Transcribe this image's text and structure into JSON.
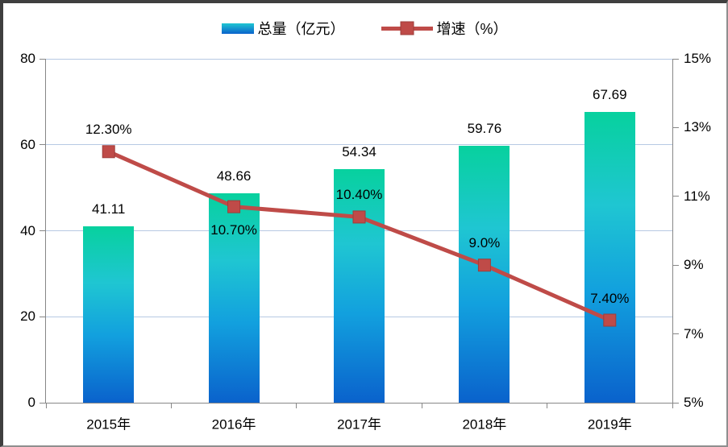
{
  "legend": {
    "position": "top",
    "items": [
      {
        "label": "总量（亿元）",
        "type": "bar"
      },
      {
        "label": "增速（%）",
        "type": "line"
      }
    ]
  },
  "chart_data": {
    "type": "bar+line combo",
    "title": "",
    "categories": [
      "2015年",
      "2016年",
      "2017年",
      "2018年",
      "2019年"
    ],
    "series": [
      {
        "name": "总量（亿元）",
        "type": "bar",
        "axis": "left",
        "values": [
          41.11,
          48.66,
          54.34,
          59.76,
          67.69
        ],
        "labels": [
          "41.11",
          "48.66",
          "54.34",
          "59.76",
          "67.69"
        ]
      },
      {
        "name": "增速（%）",
        "type": "line",
        "axis": "right",
        "values": [
          12.3,
          10.7,
          10.4,
          9.0,
          7.4
        ],
        "labels": [
          "12.30%",
          "10.70%",
          "10.40%",
          "9.0%",
          "7.40%"
        ],
        "label_position": [
          "above",
          "below",
          "above",
          "above",
          "above"
        ]
      }
    ],
    "left_axis": {
      "min": 0,
      "max": 80,
      "tick_values": [
        0,
        20,
        40,
        60,
        80
      ],
      "tick_labels": [
        "0",
        "20",
        "40",
        "60",
        "80"
      ]
    },
    "right_axis": {
      "min": 5,
      "max": 15,
      "tick_values": [
        5,
        7,
        9,
        11,
        13,
        15
      ],
      "tick_labels": [
        "5%",
        "7%",
        "9%",
        "11%",
        "13%",
        "15%"
      ]
    },
    "grid": "horizontal, at left-axis major ticks",
    "colors": {
      "bar_gradient_top": "#07d19e",
      "bar_gradient_mid1": "#1fc6d2",
      "bar_gradient_mid2": "#12a0de",
      "bar_gradient_bottom": "#0a62cc",
      "line": "#bf4b48",
      "marker_border": "#9e3d3a",
      "gridline": "#b7c9e3",
      "axis": "#878787",
      "text": "#000000"
    }
  }
}
